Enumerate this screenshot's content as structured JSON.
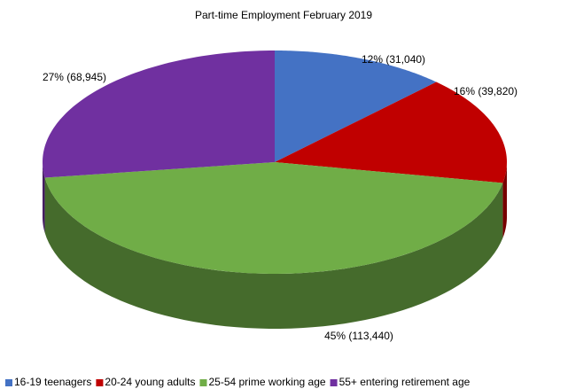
{
  "chart_data": {
    "type": "pie3d",
    "title": "Part-time  Employment  February  2019",
    "categories": [
      "16-19 teenagers",
      "20-24 young adults",
      "25-54 prime working age",
      "55+ entering retirement age"
    ],
    "values": [
      31040,
      39820,
      113440,
      68945
    ],
    "value_labels": [
      "12% (31,040)",
      "16% (39,820)",
      "45% (113,440)",
      "27% (68,945)"
    ],
    "colors": [
      "#4472c4",
      "#c00000",
      "#70ad47",
      "#7030a0"
    ],
    "legend": "bottom"
  }
}
